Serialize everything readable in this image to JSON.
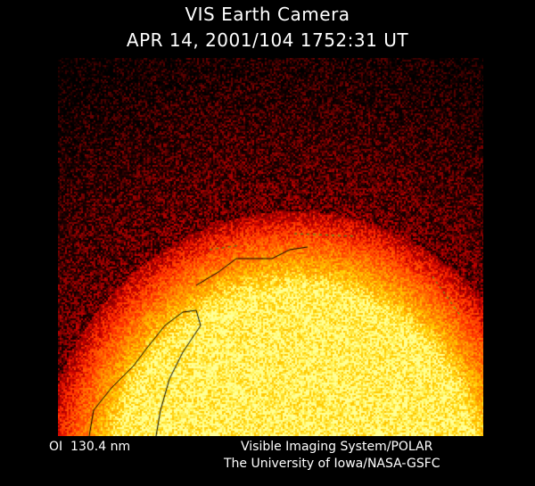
{
  "header": {
    "title": "VIS Earth Camera",
    "datetime": "APR 14, 2001/104 1752:31 UT"
  },
  "image": {
    "description_colors": {
      "space": "#3a0a00",
      "limb": "#ff9a00",
      "disk": "#fff200"
    },
    "overlay_colors": {
      "coastline": "#000000",
      "auroral_oval": "#22aa22"
    }
  },
  "footer": {
    "wavelength": "OI  130.4 nm",
    "credit_line1": "Visible Imaging System/POLAR",
    "credit_line2": "The University of Iowa/NASA-GSFC"
  }
}
